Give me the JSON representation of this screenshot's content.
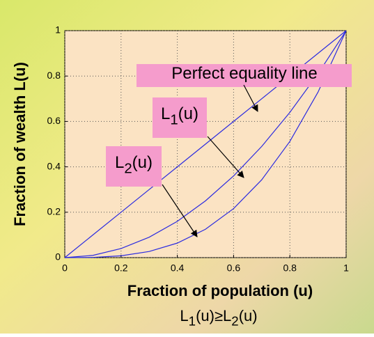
{
  "chart_data": {
    "type": "line",
    "xlabel": "Fraction of population (u)",
    "ylabel": "Fraction of wealth L(u)",
    "x": [
      0,
      0.1,
      0.2,
      0.3,
      0.4,
      0.5,
      0.6,
      0.7,
      0.8,
      0.9,
      1
    ],
    "series": [
      {
        "color": "#2b2be0",
        "values": [
          0,
          0.1,
          0.2,
          0.3,
          0.4,
          0.5,
          0.6,
          0.7,
          0.8,
          0.9,
          1
        ]
      },
      {
        "color": "#2b2be0",
        "values": [
          0,
          0.01,
          0.04,
          0.09,
          0.16,
          0.25,
          0.36,
          0.49,
          0.64,
          0.81,
          1
        ]
      },
      {
        "color": "#2b2be0",
        "values": [
          0,
          0.001,
          0.008,
          0.027,
          0.064,
          0.125,
          0.216,
          0.343,
          0.512,
          0.729,
          1
        ]
      }
    ],
    "xlim": [
      0,
      1
    ],
    "ylim": [
      0,
      1
    ],
    "xticks": [
      0,
      0.2,
      0.4,
      0.6,
      0.8,
      1
    ],
    "yticks": [
      0,
      0.2,
      0.4,
      0.6,
      0.8,
      1
    ],
    "grid": true,
    "annotations": [
      [
        "Perfect equality line"
      ],
      [
        "L",
        "1",
        "(u)"
      ],
      [
        "L",
        "2",
        "(u)"
      ]
    ],
    "caption": [
      "L",
      "1",
      "(u)≥L",
      "2",
      "(u)"
    ]
  }
}
